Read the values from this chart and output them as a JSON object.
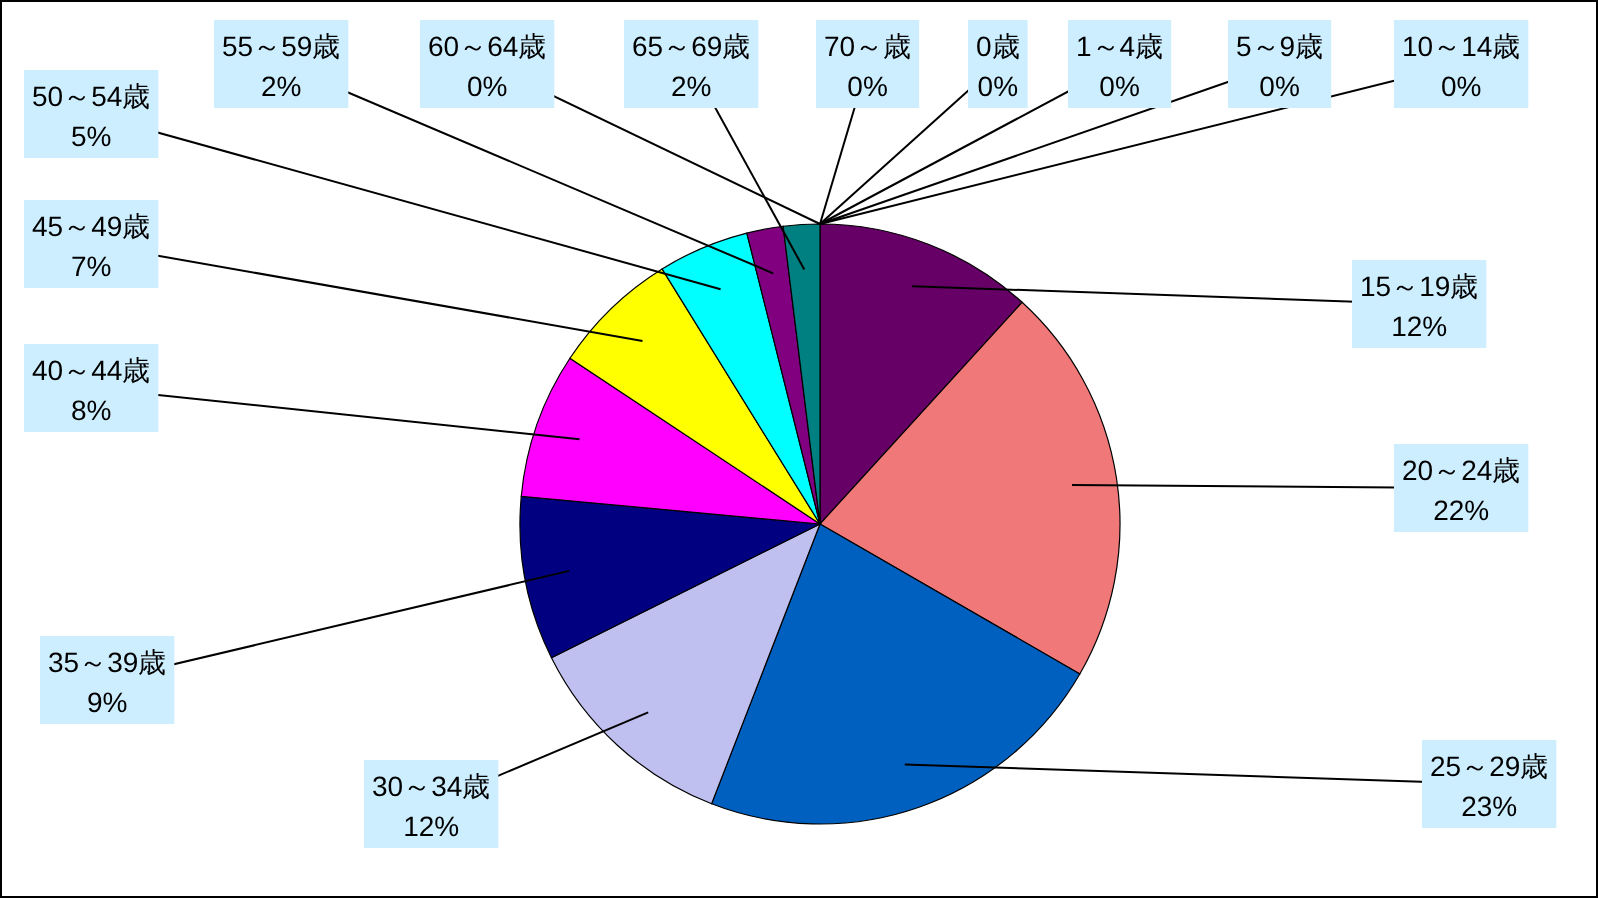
{
  "chart_data": {
    "type": "pie",
    "categories": [
      "0歳",
      "1～4歳",
      "5～9歳",
      "10～14歳",
      "15～19歳",
      "20～24歳",
      "25～29歳",
      "30～34歳",
      "35～39歳",
      "40～44歳",
      "45～49歳",
      "50～54歳",
      "55～59歳",
      "60～64歳",
      "65～69歳",
      "70～歳"
    ],
    "values": [
      0,
      0,
      0,
      0,
      12,
      22,
      23,
      12,
      9,
      8,
      7,
      5,
      2,
      0,
      2,
      0
    ],
    "value_labels": [
      "0%",
      "0%",
      "0%",
      "0%",
      "12%",
      "22%",
      "23%",
      "12%",
      "9%",
      "8%",
      "7%",
      "5%",
      "2%",
      "0%",
      "2%",
      "0%"
    ],
    "colors": [
      "#4060a0",
      "#a04060",
      "#60a040",
      "#806040",
      "#660066",
      "#f07878",
      "#0060c0",
      "#c0c0f0",
      "#000080",
      "#ff00ff",
      "#ffff00",
      "#00ffff",
      "#800080",
      "#c08040",
      "#008080",
      "#808080"
    ]
  }
}
